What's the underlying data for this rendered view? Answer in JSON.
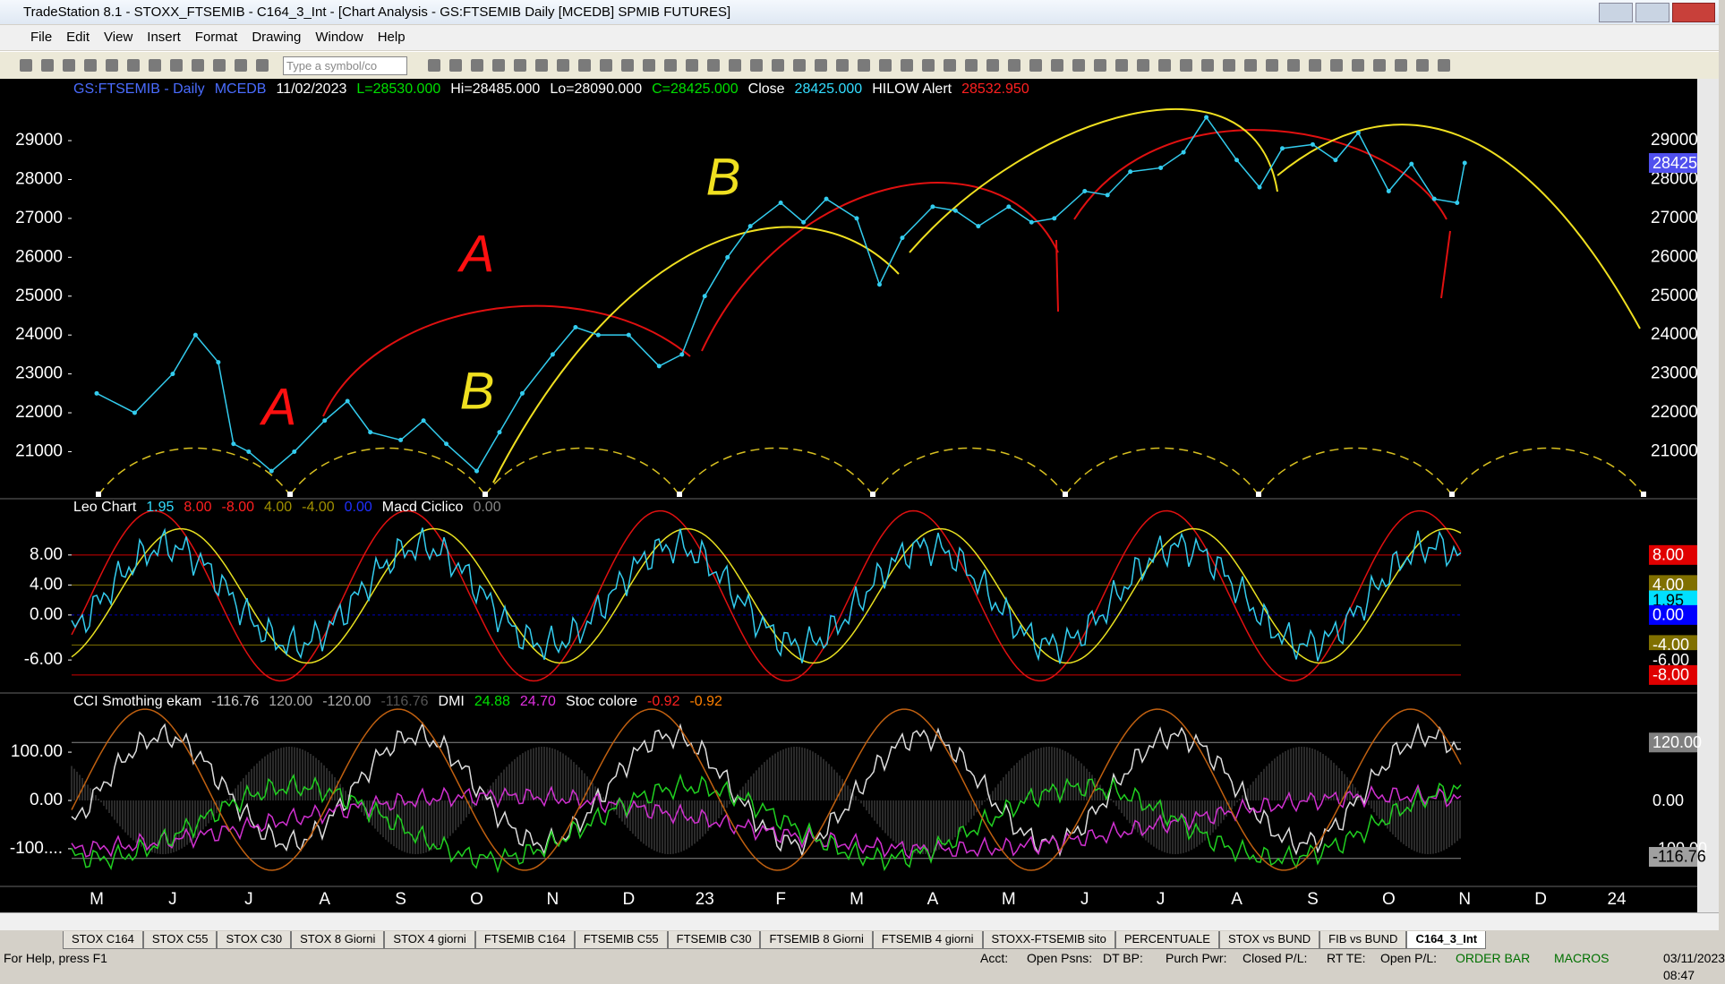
{
  "window": {
    "title": "TradeStation 8.1 - STOXX_FTSEMIB - C164_3_Int - [Chart Analysis - GS:FTSEMIB  Daily  [MCEDB] SPMIB FUTURES]"
  },
  "menu": [
    "File",
    "Edit",
    "View",
    "Insert",
    "Format",
    "Drawing",
    "Window",
    "Help"
  ],
  "toolbar": {
    "symbol_box": "Type a symbol/co"
  },
  "price_header": [
    "GS:FTSEMIB - Daily",
    "MCEDB",
    "11/02/2023",
    "L=28530.000",
    "Hi=28485.000",
    "Lo=28090.000",
    "C=28425.000",
    "Close",
    "28425.000",
    "HILOW Alert",
    "28532.950"
  ],
  "leo_header": [
    "Leo Chart",
    "1.95",
    "8.00",
    "-8.00",
    "4.00",
    "-4.00",
    "0.00",
    "Macd Ciclico",
    "0.00"
  ],
  "cci_header": [
    "CCI Smothing ekam",
    "-116.76",
    "120.00",
    "-120.00",
    "-116.76",
    "DMI",
    "24.88",
    "24.70",
    "Stoc colore",
    "-0.92",
    "-0.92"
  ],
  "chart_data": {
    "type": "line",
    "categories": [
      "M",
      "J",
      "J",
      "A",
      "S",
      "O",
      "N",
      "D",
      "23",
      "F",
      "M",
      "A",
      "M",
      "J",
      "J",
      "A",
      "S",
      "O",
      "N",
      "D",
      "24"
    ],
    "x": [
      0,
      0.5,
      1,
      1.3,
      1.6,
      1.8,
      2,
      2.3,
      2.6,
      3,
      3.3,
      3.6,
      4,
      4.3,
      4.6,
      5,
      5.3,
      5.6,
      6,
      6.3,
      6.6,
      7,
      7.4,
      7.7,
      8,
      8.3,
      8.6,
      9,
      9.3,
      9.6,
      10,
      10.3,
      10.6,
      11,
      11.3,
      11.6,
      12,
      12.3,
      12.6,
      13,
      13.3,
      13.6,
      14,
      14.3,
      14.6,
      15,
      15.3,
      15.6,
      16,
      16.3,
      16.6,
      17,
      17.3,
      17.6,
      17.9,
      18
    ],
    "series": [
      {
        "name": "GS:FTSEMIB",
        "color": "#33ccee",
        "values": [
          22500,
          22000,
          23000,
          24000,
          23300,
          21200,
          21000,
          20500,
          21000,
          21800,
          22300,
          21500,
          21300,
          21800,
          21200,
          20500,
          21500,
          22500,
          23500,
          24200,
          24000,
          24000,
          23200,
          23500,
          25000,
          26000,
          26800,
          27400,
          26900,
          27500,
          27000,
          25300,
          26500,
          27300,
          27200,
          26800,
          27300,
          26900,
          27000,
          27700,
          27600,
          28200,
          28300,
          28700,
          29600,
          28500,
          27800,
          28800,
          28900,
          28500,
          29200,
          27700,
          28400,
          27500,
          27400,
          28425
        ]
      }
    ],
    "xlim": [
      -0.33,
      20.4
    ],
    "ylim": [
      19790,
      30590
    ],
    "yticks": [
      21000,
      22000,
      23000,
      24000,
      25000,
      26000,
      27000,
      28000,
      29000
    ],
    "last_badge": {
      "value": 28425,
      "label": "28425"
    },
    "annotations": [
      "A",
      "A",
      "B",
      "B"
    ],
    "leo": {
      "ylim": [
        -10.4,
        15.5
      ],
      "yticks": [
        {
          "value": 8,
          "label": "8.00"
        },
        {
          "value": 4,
          "label": "4.00"
        },
        {
          "value": 0,
          "label": "0.00"
        },
        {
          "value": -6,
          "label": "-6.00"
        }
      ],
      "levels": [
        {
          "value": 8,
          "color": "#d00000"
        },
        {
          "value": 4,
          "color": "#807000"
        },
        {
          "value": 0,
          "color": "#0000c0"
        },
        {
          "value": -4,
          "color": "#807000"
        },
        {
          "value": -8,
          "color": "#d00000"
        }
      ],
      "badges": [
        {
          "value": 8,
          "label": "8.00",
          "color": "#e00000"
        },
        {
          "value": 4,
          "label": "4.00",
          "color": "#807000"
        },
        {
          "value": 1.95,
          "label": "1.95",
          "color": "#00e0ff"
        },
        {
          "value": 0,
          "label": "0.00",
          "color": "#0000ff"
        },
        {
          "value": -4,
          "label": "-4.00",
          "color": "#807000"
        },
        {
          "value": -6,
          "label": "-6.00",
          "color": "#000000"
        },
        {
          "value": -8,
          "label": "-8.00",
          "color": "#e00000"
        }
      ]
    },
    "cci": {
      "ylim": [
        -178,
        222.5
      ],
      "yticks": [
        {
          "value": 100,
          "label": "100.00"
        },
        {
          "value": 0,
          "label": "0.00"
        },
        {
          "value": -100,
          "label": "-100...."
        }
      ],
      "badges": [
        {
          "value": 120,
          "label": "120.00",
          "color": "#808080"
        },
        {
          "value": 0,
          "label": "0.00",
          "color": "#000000"
        },
        {
          "value": -100,
          "label": "-100.00",
          "color": "#000000"
        },
        {
          "value": -116.76,
          "label": "-116.76",
          "color": "#a0a0a0"
        }
      ]
    }
  },
  "tabs": [
    "STOX C164",
    "STOX C55",
    "STOX  C30",
    "STOX  8 Giorni",
    "STOX 4 giorni",
    "FTSEMIB C164",
    "FTSEMIB C55",
    "FTSEMIB C30",
    "FTSEMIB  8 Giorni",
    "FTSEMIB  4 giorni",
    "STOXX-FTSEMIB sito",
    "PERCENTUALE",
    "STOX vs BUND",
    "FIB vs BUND",
    "C164_3_Int"
  ],
  "status": [
    "For Help, press F1",
    "Acct:",
    "Open Psns:",
    "DT BP:",
    "Purch Pwr:",
    "Closed P/L:",
    "RT TE:",
    "Open P/L:",
    "ORDER BAR",
    "MACROS",
    "03/11/2023 08:47"
  ]
}
